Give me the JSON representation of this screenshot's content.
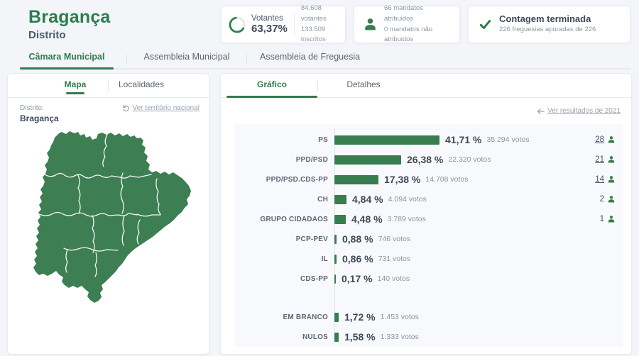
{
  "header": {
    "title": "Bragança",
    "subtitle": "Distrito"
  },
  "stats": {
    "votantes": {
      "label": "Votantes",
      "percent": "63,37%",
      "percent_value": 63.37,
      "line1": "84.608 votantes",
      "line2": "133.509 inscritos"
    },
    "mandatos": {
      "line1": "66 mandatos atribuidos",
      "line2": "0 mandatos não atribuidos"
    },
    "contagem": {
      "title": "Contagem terminada",
      "subtitle": "226 freguesias apuradas de 226"
    }
  },
  "main_tabs": [
    {
      "label": "Câmara Municipal",
      "active": true
    },
    {
      "label": "Assembleia Municipal",
      "active": false
    },
    {
      "label": "Assembleia de Freguesia",
      "active": false
    }
  ],
  "map_panel": {
    "tabs": [
      {
        "label": "Mapa",
        "active": true
      },
      {
        "label": "Localidades",
        "active": false
      }
    ],
    "district_label": "Distrito:",
    "district_name": "Bragança",
    "back_link": "Ver território nacional"
  },
  "results_panel": {
    "tabs": [
      {
        "label": "Gráfico",
        "active": true
      },
      {
        "label": "Detalhes",
        "active": false
      }
    ],
    "link_2021": "Ver resultados de 2021"
  },
  "chart_data": {
    "type": "bar",
    "orientation": "horizontal",
    "value_unit": "%",
    "xlim": [
      0,
      45
    ],
    "categories": [
      "PS",
      "PPD/PSD",
      "PPD/PSD.CDS-PP",
      "CH",
      "GRUPO CIDADAOS",
      "PCP-PEV",
      "IL",
      "CDS-PP",
      "EM BRANCO",
      "NULOS"
    ],
    "rows": [
      {
        "party": "PS",
        "percent": 41.71,
        "percent_label": "41,71 %",
        "votes": 35294,
        "votes_label": "35.294 votos",
        "mandates": 28,
        "mandates_label": "28",
        "mandates_link": true,
        "gap_before": false
      },
      {
        "party": "PPD/PSD",
        "percent": 26.38,
        "percent_label": "26,38 %",
        "votes": 22320,
        "votes_label": "22.320 votos",
        "mandates": 21,
        "mandates_label": "21",
        "mandates_link": true,
        "gap_before": false
      },
      {
        "party": "PPD/PSD.CDS-PP",
        "percent": 17.38,
        "percent_label": "17,38 %",
        "votes": 14708,
        "votes_label": "14.708 votos",
        "mandates": 14,
        "mandates_label": "14",
        "mandates_link": true,
        "gap_before": false
      },
      {
        "party": "CH",
        "percent": 4.84,
        "percent_label": "4,84 %",
        "votes": 4094,
        "votes_label": "4.094 votos",
        "mandates": 2,
        "mandates_label": "2",
        "mandates_link": false,
        "gap_before": false
      },
      {
        "party": "GRUPO CIDADAOS",
        "percent": 4.48,
        "percent_label": "4,48 %",
        "votes": 3789,
        "votes_label": "3.789 votos",
        "mandates": 1,
        "mandates_label": "1",
        "mandates_link": false,
        "gap_before": false
      },
      {
        "party": "PCP-PEV",
        "percent": 0.88,
        "percent_label": "0,88 %",
        "votes": 746,
        "votes_label": "746 votos",
        "mandates": null,
        "mandates_label": "",
        "mandates_link": false,
        "gap_before": false
      },
      {
        "party": "IL",
        "percent": 0.86,
        "percent_label": "0,86 %",
        "votes": 731,
        "votes_label": "731 votos",
        "mandates": null,
        "mandates_label": "",
        "mandates_link": false,
        "gap_before": false
      },
      {
        "party": "CDS-PP",
        "percent": 0.17,
        "percent_label": "0,17 %",
        "votes": 140,
        "votes_label": "140 votos",
        "mandates": null,
        "mandates_label": "",
        "mandates_link": false,
        "gap_before": false
      },
      {
        "party": "EM BRANCO",
        "percent": 1.72,
        "percent_label": "1,72 %",
        "votes": 1453,
        "votes_label": "1.453 votos",
        "mandates": null,
        "mandates_label": "",
        "mandates_link": false,
        "gap_before": true
      },
      {
        "party": "NULOS",
        "percent": 1.58,
        "percent_label": "1,58 %",
        "votes": 1333,
        "votes_label": "1.333 votos",
        "mandates": null,
        "mandates_label": "",
        "mandates_link": false,
        "gap_before": false
      }
    ]
  },
  "colors": {
    "brand_green": "#2e7d4e",
    "bar_green": "#377d4f",
    "map_green": "#3d7e53",
    "page_bg": "#f3f5f9",
    "panel_bg": "#f8f9fc",
    "text_dark": "#3c4858",
    "text_gray": "#8d97a2",
    "mandate_link": "#47536b"
  }
}
